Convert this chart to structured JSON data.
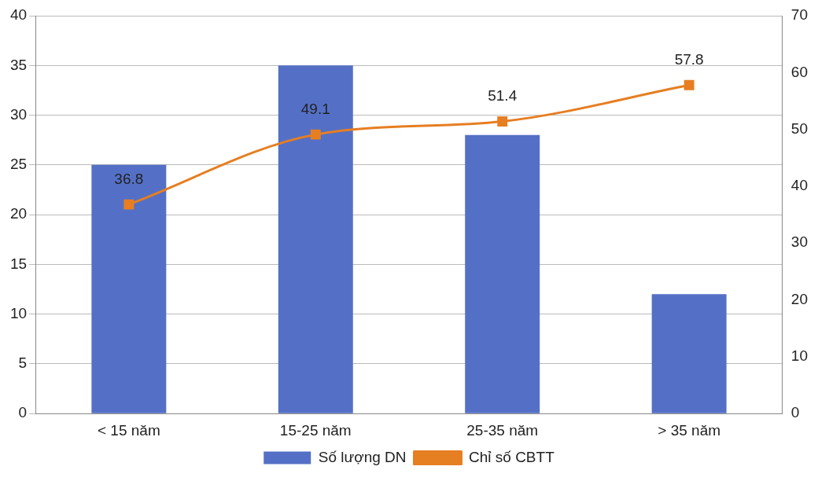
{
  "chart_data": {
    "type": "bar",
    "categories": [
      "< 15 năm",
      "15-25 năm",
      "25-35 năm",
      "> 35 năm"
    ],
    "series": [
      {
        "name": "Số lượng DN",
        "color": "#5470c6",
        "values": [
          25,
          35,
          28,
          12
        ]
      },
      {
        "name": "Chỉ số CBTT",
        "type": "line",
        "axis": "y2",
        "color": "#e67e22",
        "values": [
          36.8,
          49.1,
          51.4,
          57.8
        ],
        "value_labels": [
          "36.8",
          "49.1",
          "51.4",
          "57.8"
        ],
        "marker": "square"
      }
    ],
    "ylim": [
      0,
      40
    ],
    "yticks": [
      0,
      5,
      10,
      15,
      20,
      25,
      30,
      35,
      40
    ],
    "y2lim": [
      0,
      70
    ],
    "y2ticks": [
      0,
      10,
      20,
      30,
      40,
      50,
      60,
      70
    ],
    "grid": "y",
    "legend": "bottom"
  }
}
